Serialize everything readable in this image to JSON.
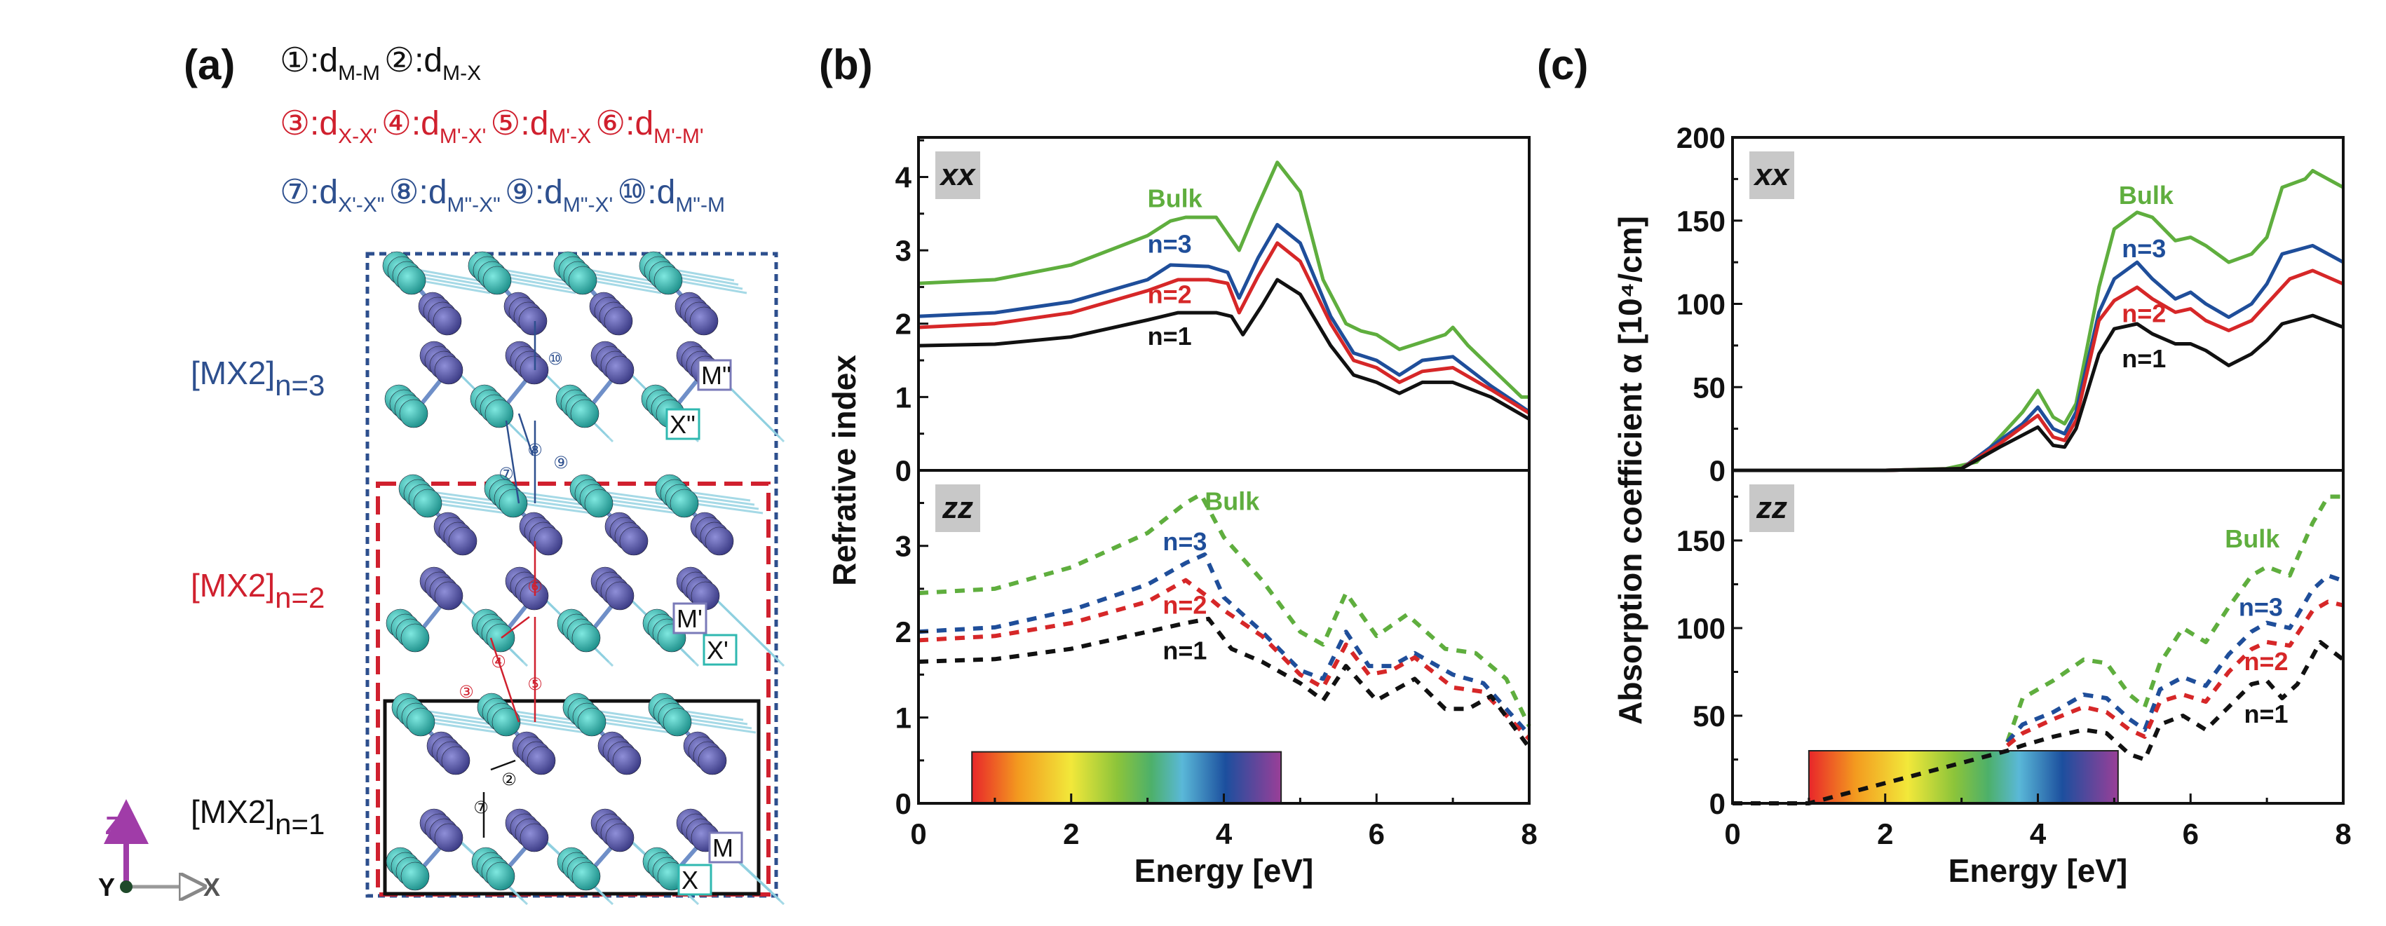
{
  "panel_labels": {
    "a": "(a)",
    "b": "(b)",
    "c": "(c)"
  },
  "legend": {
    "colors": {
      "black": "#111111",
      "red": "#d0202e",
      "blue": "#2d4f8e"
    },
    "rows": [
      [
        {
          "num": "①",
          "text": ":d",
          "sub": "M-M"
        },
        {
          "num": "②",
          "text": ":d",
          "sub": "M-X"
        }
      ],
      [
        {
          "num": "③",
          "text": ":d",
          "sub": "X-X'"
        },
        {
          "num": "④",
          "text": ":d",
          "sub": "M'-X'"
        },
        {
          "num": "⑤",
          "text": ":d",
          "sub": "M'-X"
        },
        {
          "num": "⑥",
          "text": ":d",
          "sub": "M'-M'"
        }
      ],
      [
        {
          "num": "⑦",
          "text": ":d",
          "sub": "X'-X\""
        },
        {
          "num": "⑧",
          "text": ":d",
          "sub": "M\"-X\""
        },
        {
          "num": "⑨",
          "text": ":d",
          "sub": "M\"-X'"
        },
        {
          "num": "⑩",
          "text": ":d",
          "sub": "M\"-M"
        }
      ]
    ]
  },
  "structure": {
    "layers": [
      {
        "text": "[MX2]",
        "sub": "n=3",
        "color": "#2d4f8e"
      },
      {
        "text": "[MX2]",
        "sub": "n=2",
        "color": "#d0202e"
      },
      {
        "text": "[MX2]",
        "sub": "n=1",
        "color": "#111111"
      }
    ],
    "atom_labels": [
      "M\"",
      "X\"",
      "M'",
      "X'",
      "M",
      "X"
    ],
    "atom_colors": {
      "M": "#5a5aa8",
      "X": "#2fb8b0"
    },
    "axes": {
      "z": "Z",
      "y": "Y",
      "x": "X"
    }
  },
  "chart_data": [
    {
      "panel": "(b)",
      "component": "xx",
      "type": "line",
      "ylabel": "Refrative index",
      "xlabel": "Energy [eV]",
      "xlim": [
        0,
        8
      ],
      "ylim": [
        0,
        4.54
      ],
      "yticks": [
        0,
        1,
        2,
        3,
        4
      ],
      "xticks": [
        0,
        2,
        4,
        6,
        8
      ],
      "grid": false,
      "series": [
        {
          "name": "Bulk",
          "color": "#5fae3e",
          "style": "solid",
          "x": [
            0,
            1,
            2,
            3,
            3.3,
            3.5,
            3.9,
            4.2,
            4.4,
            4.7,
            5.0,
            5.3,
            5.6,
            5.8,
            6.0,
            6.3,
            6.6,
            6.9,
            7.0,
            7.2,
            7.6,
            7.9,
            8
          ],
          "y": [
            2.55,
            2.6,
            2.8,
            3.2,
            3.4,
            3.45,
            3.45,
            3.0,
            3.5,
            4.2,
            3.8,
            2.6,
            2.0,
            1.9,
            1.85,
            1.65,
            1.75,
            1.85,
            1.95,
            1.7,
            1.3,
            1.0,
            1.0
          ]
        },
        {
          "name": "n=3",
          "color": "#1f4e9a",
          "style": "solid",
          "x": [
            0,
            1,
            2,
            3,
            3.3,
            3.8,
            4.05,
            4.2,
            4.45,
            4.7,
            5.0,
            5.4,
            5.7,
            6.0,
            6.3,
            6.6,
            7.0,
            7.5,
            8
          ],
          "y": [
            2.1,
            2.15,
            2.3,
            2.6,
            2.8,
            2.78,
            2.7,
            2.35,
            2.9,
            3.35,
            3.1,
            2.1,
            1.6,
            1.5,
            1.3,
            1.5,
            1.55,
            1.15,
            0.8
          ]
        },
        {
          "name": "n=2",
          "color": "#d62728",
          "style": "solid",
          "x": [
            0,
            1,
            2,
            3,
            3.4,
            3.8,
            4.05,
            4.2,
            4.45,
            4.7,
            5.0,
            5.4,
            5.7,
            6.0,
            6.3,
            6.6,
            7.0,
            7.5,
            8
          ],
          "y": [
            1.95,
            2.0,
            2.15,
            2.45,
            2.6,
            2.6,
            2.55,
            2.15,
            2.65,
            3.1,
            2.85,
            2.0,
            1.5,
            1.4,
            1.2,
            1.35,
            1.4,
            1.1,
            0.78
          ]
        },
        {
          "name": "n=1",
          "color": "#111111",
          "style": "solid",
          "x": [
            0,
            1,
            2,
            3,
            3.4,
            3.9,
            4.1,
            4.25,
            4.5,
            4.7,
            5.0,
            5.4,
            5.7,
            6.0,
            6.3,
            6.6,
            7.0,
            7.5,
            8
          ],
          "y": [
            1.7,
            1.72,
            1.82,
            2.05,
            2.15,
            2.15,
            2.1,
            1.85,
            2.25,
            2.6,
            2.4,
            1.7,
            1.3,
            1.2,
            1.05,
            1.2,
            1.2,
            1.0,
            0.7
          ]
        }
      ]
    },
    {
      "panel": "(b)",
      "component": "zz",
      "type": "line",
      "ylabel": "Refrative index",
      "xlabel": "Energy [eV]",
      "xlim": [
        0,
        8
      ],
      "ylim": [
        0,
        3.88
      ],
      "yticks": [
        0,
        1,
        2,
        3
      ],
      "xticks": [
        0,
        2,
        4,
        6,
        8
      ],
      "grid": false,
      "color_bar": {
        "x_range": [
          0.7,
          4.75
        ],
        "height": 0.6
      },
      "series": [
        {
          "name": "Bulk",
          "color": "#5fae3e",
          "style": "dashed",
          "x": [
            0,
            1,
            2,
            3,
            3.5,
            3.7,
            4.0,
            4.5,
            5.0,
            5.3,
            5.6,
            6.0,
            6.4,
            6.9,
            7.3,
            7.7,
            8.0
          ],
          "y": [
            2.45,
            2.5,
            2.75,
            3.15,
            3.5,
            3.6,
            3.1,
            2.6,
            2.0,
            1.85,
            2.45,
            1.95,
            2.2,
            1.8,
            1.75,
            1.45,
            0.9
          ]
        },
        {
          "name": "n=3",
          "color": "#1f4e9a",
          "style": "dashed",
          "x": [
            0,
            1,
            2,
            3,
            3.5,
            3.75,
            4.0,
            4.5,
            5.0,
            5.3,
            5.6,
            5.9,
            6.2,
            6.5,
            7.0,
            7.4,
            8.0
          ],
          "y": [
            2.0,
            2.05,
            2.25,
            2.55,
            2.8,
            2.9,
            2.4,
            2.0,
            1.55,
            1.45,
            2.0,
            1.6,
            1.6,
            1.75,
            1.5,
            1.4,
            0.8
          ]
        },
        {
          "name": "n=2",
          "color": "#d62728",
          "style": "dashed",
          "x": [
            0,
            1,
            2,
            3,
            3.5,
            3.8,
            4.0,
            4.5,
            5.0,
            5.3,
            5.6,
            5.9,
            6.2,
            6.5,
            7.0,
            7.4,
            8.0
          ],
          "y": [
            1.9,
            1.95,
            2.1,
            2.35,
            2.6,
            2.4,
            2.25,
            1.95,
            1.5,
            1.35,
            1.85,
            1.5,
            1.55,
            1.7,
            1.35,
            1.3,
            0.75
          ]
        },
        {
          "name": "n=1",
          "color": "#111111",
          "style": "dashed",
          "x": [
            0,
            1,
            2,
            3,
            3.5,
            3.8,
            4.1,
            4.5,
            5.0,
            5.3,
            5.6,
            6.0,
            6.5,
            6.9,
            7.2,
            7.5,
            8.0
          ],
          "y": [
            1.65,
            1.68,
            1.8,
            2.0,
            2.1,
            2.15,
            1.8,
            1.65,
            1.4,
            1.2,
            1.6,
            1.2,
            1.45,
            1.1,
            1.1,
            1.25,
            0.65
          ]
        }
      ]
    },
    {
      "panel": "(c)",
      "component": "xx",
      "type": "line",
      "ylabel": "Absorption coefficient α [10⁴/cm]",
      "xlabel": "Energy [eV]",
      "xlim": [
        0,
        8
      ],
      "ylim": [
        0,
        200
      ],
      "yticks": [
        0,
        50,
        100,
        150,
        200
      ],
      "xticks": [
        0,
        2,
        4,
        6,
        8
      ],
      "grid": false,
      "series": [
        {
          "name": "Bulk",
          "color": "#5fae3e",
          "style": "solid",
          "x": [
            0,
            2,
            2.8,
            3.2,
            3.5,
            3.8,
            4.0,
            4.2,
            4.35,
            4.5,
            4.8,
            5.0,
            5.3,
            5.5,
            5.8,
            6.0,
            6.2,
            6.5,
            6.8,
            7.0,
            7.2,
            7.5,
            7.6,
            7.8,
            8.0
          ],
          "y": [
            0,
            0,
            1,
            5,
            20,
            35,
            48,
            32,
            28,
            40,
            110,
            145,
            155,
            152,
            138,
            140,
            135,
            125,
            130,
            140,
            170,
            175,
            180,
            175,
            170
          ]
        },
        {
          "name": "n=3",
          "color": "#1f4e9a",
          "style": "solid",
          "x": [
            0,
            2,
            3,
            3.5,
            3.8,
            4.0,
            4.2,
            4.35,
            4.5,
            4.8,
            5.0,
            5.3,
            5.5,
            5.8,
            6.0,
            6.2,
            6.5,
            6.8,
            7.0,
            7.2,
            7.6,
            8.0
          ],
          "y": [
            0,
            0,
            1,
            18,
            28,
            38,
            25,
            22,
            35,
            95,
            115,
            125,
            115,
            103,
            107,
            100,
            92,
            100,
            112,
            130,
            135,
            125
          ]
        },
        {
          "name": "n=2",
          "color": "#d62728",
          "style": "solid",
          "x": [
            0,
            2,
            3,
            3.5,
            4.0,
            4.2,
            4.35,
            4.5,
            4.8,
            5.0,
            5.3,
            5.5,
            5.8,
            6.0,
            6.2,
            6.5,
            6.8,
            7.0,
            7.3,
            7.6,
            8.0
          ],
          "y": [
            0,
            0,
            1,
            16,
            33,
            20,
            18,
            30,
            90,
            102,
            110,
            103,
            95,
            97,
            90,
            84,
            90,
            100,
            115,
            120,
            112
          ]
        },
        {
          "name": "n=1",
          "color": "#111111",
          "style": "solid",
          "x": [
            0,
            2,
            3,
            3.5,
            4.0,
            4.2,
            4.35,
            4.5,
            4.8,
            5.0,
            5.3,
            5.5,
            5.8,
            6.0,
            6.2,
            6.5,
            6.8,
            7.0,
            7.2,
            7.6,
            8.0
          ],
          "y": [
            0,
            0,
            1,
            14,
            26,
            15,
            14,
            25,
            70,
            85,
            88,
            82,
            76,
            76,
            72,
            63,
            70,
            78,
            88,
            93,
            86
          ]
        }
      ]
    },
    {
      "panel": "(c)",
      "component": "zz",
      "type": "line",
      "ylabel": "Absorption coefficient α [10⁴/cm]",
      "xlabel": "Energy [eV]",
      "xlim": [
        0,
        8
      ],
      "ylim": [
        0,
        190
      ],
      "yticks": [
        0,
        50,
        100,
        150
      ],
      "xticks": [
        0,
        2,
        4,
        6,
        8
      ],
      "grid": false,
      "color_bar": {
        "x_range": [
          1.0,
          5.05
        ],
        "height": 30
      },
      "series": [
        {
          "name": "Bulk",
          "color": "#5fae3e",
          "style": "dashed",
          "x": [
            3.6,
            3.8,
            4.2,
            4.6,
            4.9,
            5.2,
            5.4,
            5.6,
            5.9,
            6.2,
            6.5,
            6.8,
            7.0,
            7.3,
            7.6,
            7.8,
            8.0
          ],
          "y": [
            35,
            60,
            70,
            82,
            80,
            62,
            55,
            80,
            100,
            92,
            112,
            130,
            135,
            130,
            160,
            175,
            175
          ]
        },
        {
          "name": "n=3",
          "color": "#1f4e9a",
          "style": "dashed",
          "x": [
            3.6,
            3.8,
            4.2,
            4.6,
            4.9,
            5.2,
            5.4,
            5.6,
            5.9,
            6.2,
            6.5,
            6.8,
            7.0,
            7.3,
            7.6,
            7.8,
            8.0
          ],
          "y": [
            35,
            45,
            52,
            62,
            60,
            48,
            42,
            65,
            72,
            67,
            85,
            98,
            103,
            100,
            122,
            130,
            127
          ]
        },
        {
          "name": "n=2",
          "color": "#d62728",
          "style": "dashed",
          "x": [
            3.6,
            3.8,
            4.2,
            4.6,
            4.9,
            5.2,
            5.4,
            5.6,
            5.9,
            6.2,
            6.5,
            6.8,
            7.0,
            7.3,
            7.6,
            7.8,
            8.0
          ],
          "y": [
            33,
            40,
            48,
            55,
            52,
            42,
            38,
            58,
            62,
            58,
            75,
            88,
            92,
            90,
            110,
            115,
            113
          ]
        },
        {
          "name": "n=1",
          "color": "#111111",
          "style": "dashed",
          "x": [
            0,
            1,
            3.6,
            3.8,
            4.2,
            4.6,
            4.9,
            5.2,
            5.4,
            5.6,
            5.9,
            6.2,
            6.5,
            6.8,
            7.0,
            7.2,
            7.4,
            7.7,
            8.0
          ],
          "y": [
            0,
            0,
            30,
            33,
            38,
            42,
            40,
            28,
            25,
            45,
            50,
            42,
            55,
            68,
            70,
            60,
            68,
            92,
            82
          ]
        }
      ]
    }
  ]
}
